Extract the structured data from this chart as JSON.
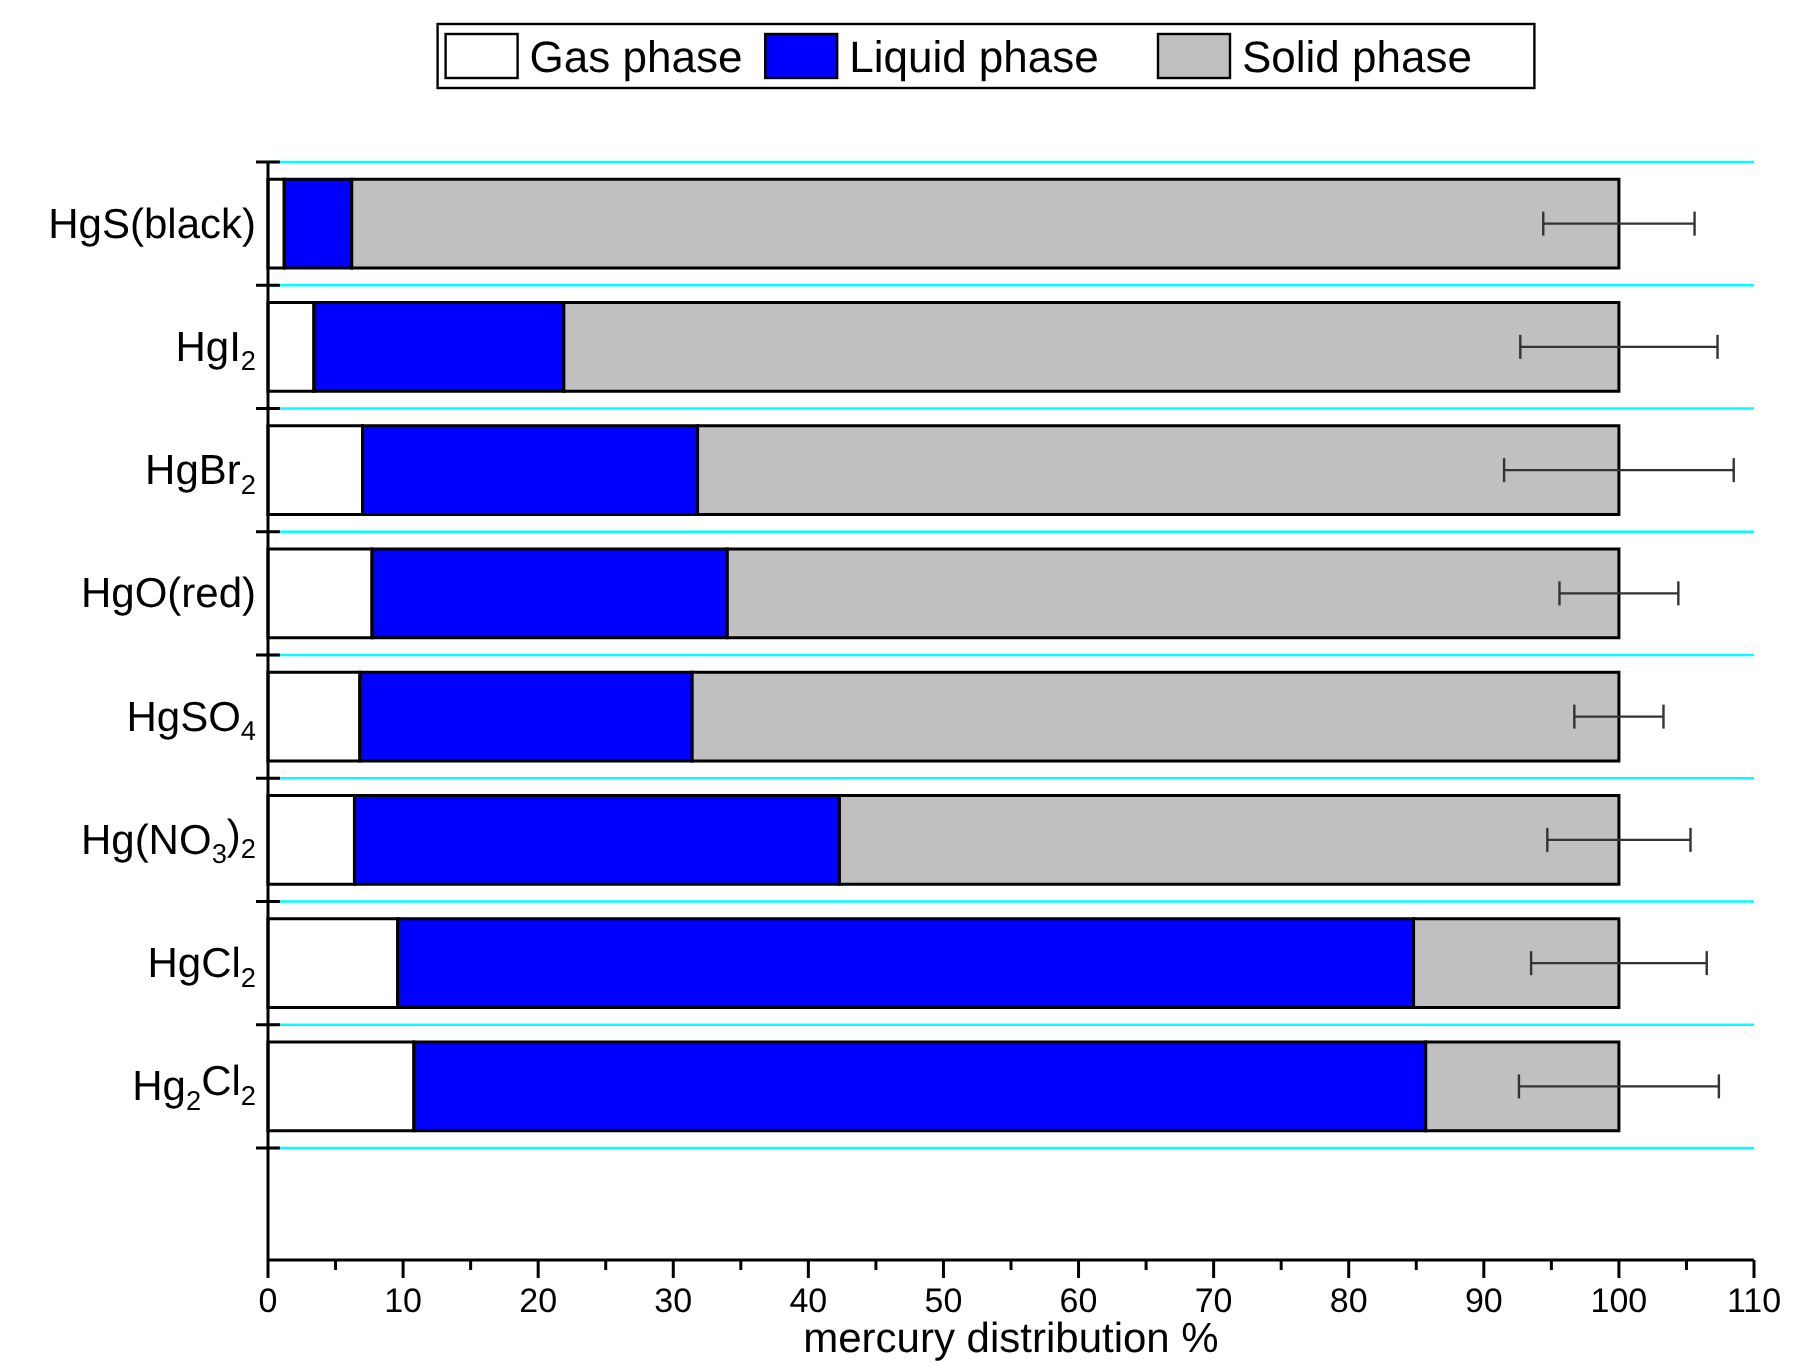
{
  "chart_data": {
    "type": "bar",
    "orientation": "horizontal",
    "stacked": true,
    "xlabel": "mercury distribution %",
    "categories": [
      "HgS(black)",
      "HgI$_{2}$",
      "HgBr$_{2}$",
      "HgO(red)",
      "HgSO$_{4}$",
      "Hg(NO$_{3}$)$_{2}$",
      "HgCl$_{2}$",
      "Hg$_{2}$Cl$_{2}$"
    ],
    "series": [
      {
        "name": "Gas phase",
        "color": "#ffffff",
        "values": [
          1.2,
          3.4,
          7.0,
          7.7,
          6.8,
          6.4,
          9.6,
          10.8
        ]
      },
      {
        "name": "Liquid phase",
        "color": "#0000ff",
        "values": [
          5.0,
          18.5,
          24.8,
          26.3,
          24.6,
          35.9,
          75.2,
          74.9
        ]
      },
      {
        "name": "Solid phase",
        "color": "#c0c0c0",
        "values": [
          93.8,
          78.1,
          68.2,
          66.0,
          68.6,
          57.7,
          15.2,
          14.3
        ],
        "errors": [
          5.6,
          7.3,
          8.5,
          4.4,
          3.3,
          5.3,
          6.5,
          7.4
        ]
      }
    ],
    "xlim": [
      0,
      110
    ],
    "xticks": [
      0,
      {
        "value": 5,
        "label": null
      },
      10,
      {
        "value": 15,
        "label": null
      },
      20,
      {
        "value": 25,
        "label": null
      },
      30,
      {
        "value": 35,
        "label": null
      },
      40,
      {
        "value": 45,
        "label": null
      },
      50,
      {
        "value": 55,
        "label": null
      },
      60,
      {
        "value": 65,
        "label": null
      },
      70,
      {
        "value": 75,
        "label": null
      },
      80,
      {
        "value": 85,
        "label": null
      },
      90,
      {
        "value": 95,
        "label": null
      },
      100,
      {
        "value": 105,
        "label": null
      },
      110
    ],
    "grid": "y",
    "legend": "top"
  }
}
